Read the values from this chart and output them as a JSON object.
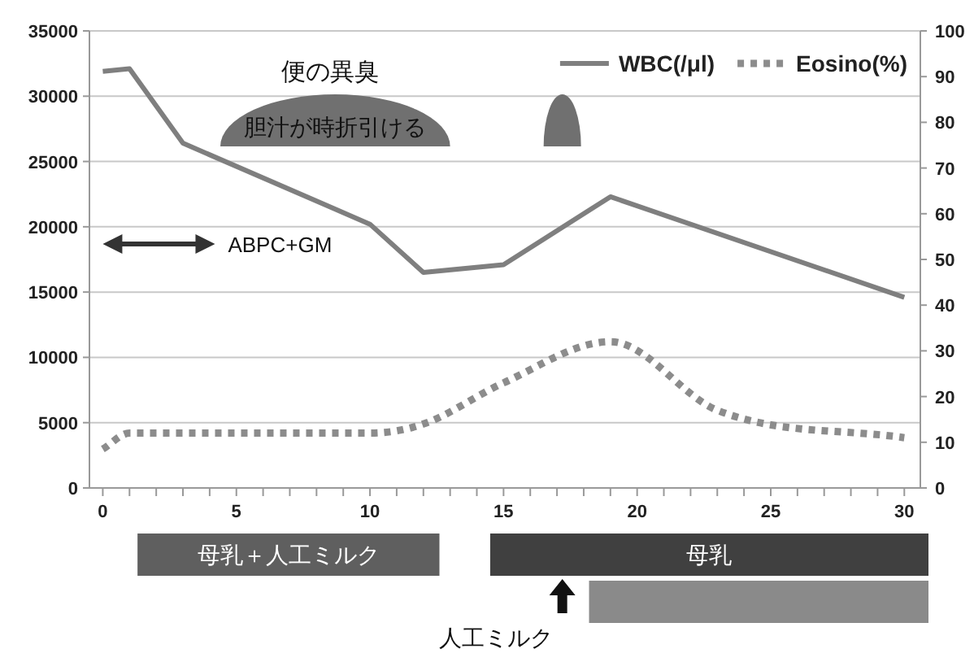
{
  "chart_data": {
    "type": "line",
    "x": [
      0,
      1,
      3,
      10,
      12,
      15,
      19,
      30
    ],
    "series": [
      {
        "name": "WBC(/μl)",
        "color": "#7f7f7f",
        "line_style": "solid",
        "values": [
          31900,
          32100,
          26400,
          20200,
          16500,
          17100,
          22300,
          14600
        ]
      },
      {
        "name": "Eosino(%)",
        "color": "#8c8c8c",
        "line_style": "dotted",
        "axis": "y2",
        "x": [
          0,
          1,
          3,
          10,
          12,
          15,
          19,
          23,
          30
        ],
        "values": [
          8.5,
          12,
          12,
          12,
          14,
          23,
          32,
          17,
          11
        ]
      }
    ],
    "xlim": [
      -0.5,
      30.6
    ],
    "xticks": [
      0,
      {
        "value": 1,
        "label": null
      },
      {
        "value": 2,
        "label": null
      },
      {
        "value": 3,
        "label": null
      },
      {
        "value": 4,
        "label": null
      },
      5,
      {
        "value": 6,
        "label": null
      },
      {
        "value": 7,
        "label": null
      },
      {
        "value": 8,
        "label": null
      },
      {
        "value": 9,
        "label": null
      },
      10,
      {
        "value": 11,
        "label": null
      },
      {
        "value": 12,
        "label": null
      },
      {
        "value": 13,
        "label": null
      },
      {
        "value": 14,
        "label": null
      },
      15,
      {
        "value": 16,
        "label": null
      },
      {
        "value": 17,
        "label": null
      },
      {
        "value": 18,
        "label": null
      },
      {
        "value": 19,
        "label": null
      },
      20,
      {
        "value": 21,
        "label": null
      },
      {
        "value": 22,
        "label": null
      },
      {
        "value": 23,
        "label": null
      },
      {
        "value": 24,
        "label": null
      },
      25,
      {
        "value": 26,
        "label": null
      },
      {
        "value": 27,
        "label": null
      },
      {
        "value": 28,
        "label": null
      },
      {
        "value": 29,
        "label": null
      },
      30
    ],
    "ylim": [
      0,
      35000
    ],
    "yticks": [
      0,
      5000,
      10000,
      15000,
      20000,
      25000,
      30000,
      35000
    ],
    "y2lim": [
      0,
      100
    ],
    "y2ticks": [
      0,
      10,
      20,
      30,
      40,
      50,
      60,
      70,
      80,
      90,
      100
    ],
    "grid": "y",
    "legend": "top right",
    "marker": "none",
    "annotations": [
      "便の異臭",
      "胆汁が時折引ける",
      "ABPC+GM",
      "母乳＋人工ミルク",
      "母乳",
      "人工ミルク"
    ]
  }
}
